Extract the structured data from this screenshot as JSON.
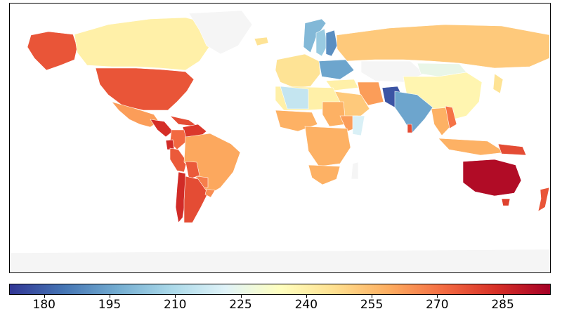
{
  "colorbar": {
    "min": 172,
    "max": 296,
    "ticks": [
      "180",
      "195",
      "210",
      "225",
      "240",
      "255",
      "270",
      "285"
    ],
    "colors": [
      "#313695",
      "#4575b4",
      "#74add1",
      "#abd9e9",
      "#e0f3f8",
      "#ffffbf",
      "#fee090",
      "#fdae61",
      "#f46d43",
      "#d73027",
      "#a50026"
    ]
  },
  "map_data": {
    "type": "choropleth",
    "no_data_color": "#f5f5f5",
    "regions": [
      {
        "name": "Alaska",
        "value": 276
      },
      {
        "name": "Canada",
        "value": 240
      },
      {
        "name": "Greenland",
        "value": null
      },
      {
        "name": "Iceland",
        "value": 245
      },
      {
        "name": "United States",
        "value": 276
      },
      {
        "name": "Mexico",
        "value": 262
      },
      {
        "name": "Central America",
        "value": 284
      },
      {
        "name": "Caribbean",
        "value": 278
      },
      {
        "name": "Venezuela",
        "value": 282
      },
      {
        "name": "Colombia",
        "value": 272
      },
      {
        "name": "Ecuador",
        "value": 285
      },
      {
        "name": "Peru",
        "value": 275
      },
      {
        "name": "Brazil",
        "value": 260
      },
      {
        "name": "Bolivia",
        "value": 275
      },
      {
        "name": "Paraguay",
        "value": 268
      },
      {
        "name": "Chile",
        "value": 285
      },
      {
        "name": "Argentina",
        "value": 278
      },
      {
        "name": "Uruguay",
        "value": 265
      },
      {
        "name": "Norway",
        "value": 200
      },
      {
        "name": "Sweden",
        "value": 205
      },
      {
        "name": "Finland",
        "value": 190
      },
      {
        "name": "Western Europe",
        "value": 245
      },
      {
        "name": "Eastern Europe",
        "value": 195
      },
      {
        "name": "Russia",
        "value": 252
      },
      {
        "name": "Kazakhstan",
        "value": null
      },
      {
        "name": "Mongolia",
        "value": 225
      },
      {
        "name": "China",
        "value": 238
      },
      {
        "name": "Japan",
        "value": 245
      },
      {
        "name": "Turkey",
        "value": 240
      },
      {
        "name": "Iran",
        "value": 262
      },
      {
        "name": "Saudi Arabia",
        "value": 252
      },
      {
        "name": "Pakistan",
        "value": 178
      },
      {
        "name": "India",
        "value": 195
      },
      {
        "name": "Sri Lanka",
        "value": 278
      },
      {
        "name": "Southeast Asia",
        "value": 258
      },
      {
        "name": "Vietnam",
        "value": 270
      },
      {
        "name": "Indonesia",
        "value": 258
      },
      {
        "name": "Papua New Guinea",
        "value": 278
      },
      {
        "name": "North Africa",
        "value": 240
      },
      {
        "name": "Mali",
        "value": 215
      },
      {
        "name": "West Africa",
        "value": 258
      },
      {
        "name": "Sudan",
        "value": 258
      },
      {
        "name": "Ethiopia",
        "value": 262
      },
      {
        "name": "Somalia",
        "value": 220
      },
      {
        "name": "Central Africa",
        "value": 258
      },
      {
        "name": "Southern Africa",
        "value": 258
      },
      {
        "name": "Madagascar",
        "value": null
      },
      {
        "name": "Australia",
        "value": 293
      },
      {
        "name": "Tasmania",
        "value": 280
      },
      {
        "name": "New Zealand",
        "value": 276
      },
      {
        "name": "Antarctica",
        "value": null
      }
    ]
  }
}
